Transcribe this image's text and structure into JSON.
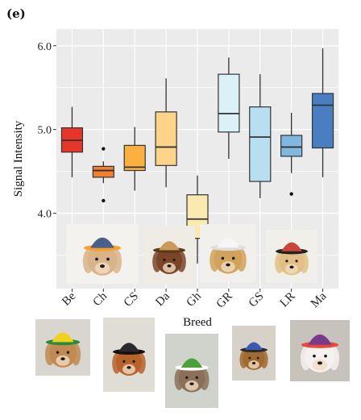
{
  "panel_label": "(e)",
  "chart_data": {
    "type": "box",
    "title": "",
    "xlabel": "Breed",
    "ylabel": "Signal Intensity",
    "ylim": [
      3.1,
      6.2
    ],
    "yticks": [
      4.0,
      5.0,
      6.0
    ],
    "ytick_labels": [
      "4.0",
      "5.0",
      "6.0"
    ],
    "grid": true,
    "background": "#ebebeb",
    "categories": [
      "Be",
      "Ch",
      "CS",
      "Da",
      "Gh",
      "GR",
      "GS",
      "LR",
      "Ma"
    ],
    "boxes": [
      {
        "category": "Be",
        "whisker_low": 4.43,
        "q1": 4.73,
        "median": 4.87,
        "q3": 5.02,
        "whisker_high": 5.27,
        "outliers": [],
        "color": "#e8352a"
      },
      {
        "category": "Ch",
        "whisker_low": 4.36,
        "q1": 4.43,
        "median": 4.51,
        "q3": 4.56,
        "whisker_high": 4.62,
        "outliers": [
          4.15,
          4.77
        ],
        "color": "#f57f2a"
      },
      {
        "category": "CS",
        "whisker_low": 4.27,
        "q1": 4.51,
        "median": 4.55,
        "q3": 4.81,
        "whisker_high": 5.03,
        "outliers": [],
        "color": "#fbb040"
      },
      {
        "category": "Da",
        "whisker_low": 4.31,
        "q1": 4.57,
        "median": 4.79,
        "q3": 5.21,
        "whisker_high": 5.61,
        "outliers": [],
        "color": "#fdd48a"
      },
      {
        "category": "Gh",
        "whisker_low": 3.4,
        "q1": 3.7,
        "median": 3.93,
        "q3": 4.22,
        "whisker_high": 4.45,
        "outliers": [],
        "color": "#fbeab0"
      },
      {
        "category": "GR",
        "whisker_low": 4.65,
        "q1": 4.97,
        "median": 5.19,
        "q3": 5.66,
        "whisker_high": 5.86,
        "outliers": [],
        "color": "#dcf0f8"
      },
      {
        "category": "GS",
        "whisker_low": 4.18,
        "q1": 4.38,
        "median": 4.91,
        "q3": 5.27,
        "whisker_high": 5.66,
        "outliers": [],
        "color": "#b8def2"
      },
      {
        "category": "LR",
        "whisker_low": 4.48,
        "q1": 4.68,
        "median": 4.79,
        "q3": 4.93,
        "whisker_high": 5.2,
        "outliers": [
          4.23
        ],
        "color": "#7fb8e0"
      },
      {
        "category": "Ma",
        "whisker_low": 4.43,
        "q1": 4.78,
        "median": 5.29,
        "q3": 5.43,
        "whisker_high": 5.97,
        "outliers": [],
        "color": "#4a7ec2"
      }
    ]
  },
  "photos": [
    {
      "id": "chihuahua",
      "hat": "blue-orange-baseball-cap",
      "fur": "#d9b48a",
      "hat_color": "#4a5f8a",
      "hat_accent": "#f5a030"
    },
    {
      "id": "dachshund",
      "hat": "cowboy-hat",
      "fur": "#7a4528",
      "hat_color": "#c99a5a",
      "hat_accent": "#5a3a1a"
    },
    {
      "id": "golden-retriever",
      "hat": "chef-hat",
      "fur": "#d2a25c",
      "hat_color": "#f6f6f6",
      "hat_accent": "#dddddd"
    },
    {
      "id": "labrador",
      "hat": "straw-hat-sunglasses",
      "fur": "#e2bf84",
      "hat_color": "#c9443a",
      "hat_accent": "#222222"
    },
    {
      "id": "beagle",
      "hat": "rasta-hat",
      "fur": "#c08a52",
      "hat_color": "#f0d020",
      "hat_accent": "#2a8a3a"
    },
    {
      "id": "cocker-spaniel",
      "hat": "top-hat",
      "fur": "#b8622c",
      "hat_color": "#2a2a2a",
      "hat_accent": "#111111"
    },
    {
      "id": "greyhound",
      "hat": "frog-hood",
      "fur": "#8a7058",
      "hat_color": "#4aa03a",
      "hat_accent": "#ffffff"
    },
    {
      "id": "german-shepherd",
      "hat": "blue-cap",
      "fur": "#a06a30",
      "hat_color": "#3a5ab0",
      "hat_accent": "#2a2a2a"
    },
    {
      "id": "maltese",
      "hat": "rainbow-beanie",
      "fur": "#f4f1ee",
      "hat_color": "#7a3a8a",
      "hat_accent": "#e84a3a"
    }
  ]
}
